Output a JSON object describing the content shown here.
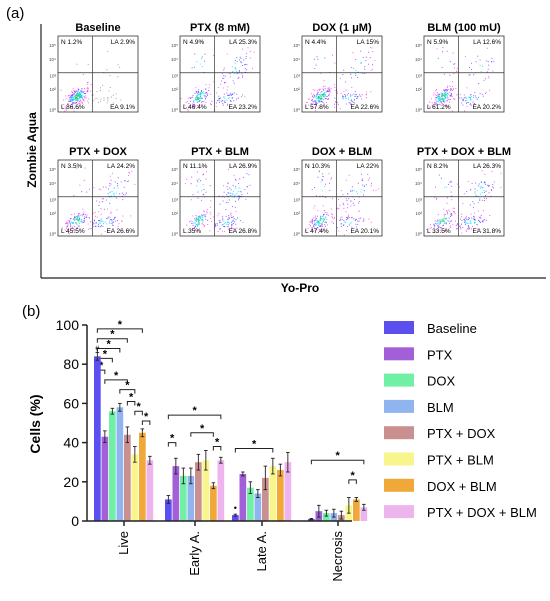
{
  "panel_a": {
    "label": "(a)",
    "ylabel": "Zombie Aqua",
    "xlabel": "Yo-Pro",
    "tick_labels": [
      "10⁵",
      "10⁴",
      "10³",
      "10²",
      "10⁰"
    ],
    "plots": [
      {
        "title": "Baseline",
        "N": "N 1.2%",
        "LA": "LA 2.9%",
        "L": "L 86.6%",
        "EA": "EA 9.1%"
      },
      {
        "title": "PTX (8 mM)",
        "N": "N 4.9%",
        "LA": "LA 25.3%",
        "L": "L 46.4%",
        "EA": "EA 23.2%"
      },
      {
        "title": "DOX (1 μM)",
        "N": "N 4.4%",
        "LA": "LA 15%",
        "L": "L 57.8%",
        "EA": "EA 22.6%"
      },
      {
        "title": "BLM (100 mU)",
        "N": "N 5.9%",
        "LA": "LA 12.6%",
        "L": "L 61.2%",
        "EA": "EA 20.2%"
      },
      {
        "title": "PTX + DOX",
        "N": "N 3.5%",
        "LA": "LA 24.2%",
        "L": "L 45.5%",
        "EA": "EA 26.6%"
      },
      {
        "title": "PTX + BLM",
        "N": "N 11.1%",
        "LA": "LA 26.9%",
        "L": "L 35%",
        "EA": "EA 26.8%"
      },
      {
        "title": "DOX + BLM",
        "N": "N 10.3%",
        "LA": "LA 22%",
        "L": "L 47.4%",
        "EA": "EA 20.1%"
      },
      {
        "title": "PTX + DOX + BLM",
        "N": "N 8.2%",
        "LA": "LA 26.3%",
        "L": "L 33.5%",
        "EA": "EA 31.8%"
      }
    ]
  },
  "chart_data": {
    "type": "bar",
    "panel_label": "(b)",
    "ylabel": "Cells (%)",
    "ylim": [
      0,
      100
    ],
    "yticks": [
      "0",
      "20",
      "40",
      "60",
      "80",
      "100"
    ],
    "categories": [
      "Live",
      "Early A.",
      "Late A.",
      "Necrosis"
    ],
    "legend_position": "right",
    "series": [
      {
        "name": "Baseline",
        "color": "#5b4ff0",
        "values": [
          84,
          11,
          3,
          1
        ],
        "errors": [
          2,
          2,
          0.5,
          0.3
        ]
      },
      {
        "name": "PTX",
        "color": "#a35fd8",
        "values": [
          43,
          28,
          24,
          5
        ],
        "errors": [
          3,
          4,
          1,
          3
        ]
      },
      {
        "name": "DOX",
        "color": "#6ff0a4",
        "values": [
          56,
          23,
          17,
          4
        ],
        "errors": [
          1.5,
          4,
          3,
          1.5
        ]
      },
      {
        "name": "BLM",
        "color": "#8fb4f0",
        "values": [
          58,
          23,
          14,
          4
        ],
        "errors": [
          2,
          4,
          2,
          2
        ]
      },
      {
        "name": "PTX + DOX",
        "color": "#c9908f",
        "values": [
          44,
          30,
          22,
          3
        ],
        "errors": [
          4,
          4,
          6,
          2
        ]
      },
      {
        "name": "PTX + BLM",
        "color": "#f7f58c",
        "values": [
          34,
          31,
          28,
          8
        ],
        "errors": [
          4,
          5,
          4,
          4
        ]
      },
      {
        "name": "DOX + BLM",
        "color": "#f0a838",
        "values": [
          45,
          18,
          26,
          11
        ],
        "errors": [
          2,
          1.5,
          3,
          1
        ]
      },
      {
        "name": "PTX + DOX + BLM",
        "color": "#eeb4ee",
        "values": [
          31,
          31,
          30,
          7
        ],
        "errors": [
          2,
          1.5,
          5,
          1.5
        ]
      }
    ],
    "annotations": [
      "*",
      "#",
      "•"
    ]
  }
}
